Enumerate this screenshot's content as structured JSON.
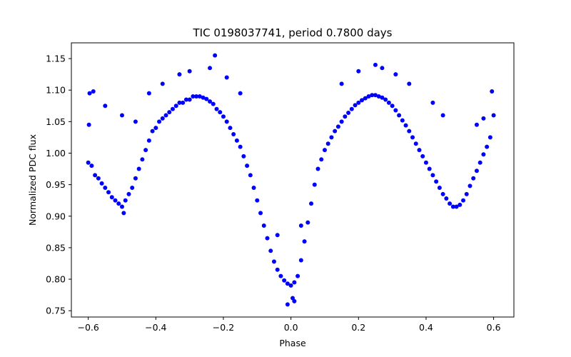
{
  "chart_data": {
    "type": "scatter",
    "title": "TIC 0198037741, period 0.7800 days",
    "xlabel": "Phase",
    "ylabel": "Normalized PDC flux",
    "xlim": [
      -0.65,
      0.66
    ],
    "ylim": [
      0.74,
      1.175
    ],
    "x_ticks": [
      -0.6,
      -0.4,
      -0.2,
      0.0,
      0.2,
      0.4,
      0.6
    ],
    "x_tick_labels": [
      "−0.6",
      "−0.4",
      "−0.2",
      "0.0",
      "0.2",
      "0.4",
      "0.6"
    ],
    "y_ticks": [
      0.75,
      0.8,
      0.85,
      0.9,
      0.95,
      1.0,
      1.05,
      1.1,
      1.15
    ],
    "y_tick_labels": [
      "0.75",
      "0.80",
      "0.85",
      "0.90",
      "0.95",
      "1.00",
      "1.05",
      "1.10",
      "1.15"
    ],
    "grid": false,
    "marker_color": "#0000ff",
    "series": [
      {
        "values_note_free": true,
        "points": [
          [
            -0.6,
            0.985
          ],
          [
            -0.598,
            1.045
          ],
          [
            -0.596,
            1.095
          ],
          [
            -0.59,
            0.98
          ],
          [
            -0.585,
            1.098
          ],
          [
            -0.58,
            0.965
          ],
          [
            -0.57,
            0.96
          ],
          [
            -0.56,
            0.952
          ],
          [
            -0.55,
            0.945
          ],
          [
            -0.54,
            0.938
          ],
          [
            -0.53,
            0.93
          ],
          [
            -0.52,
            0.925
          ],
          [
            -0.51,
            0.92
          ],
          [
            -0.5,
            0.915
          ],
          [
            -0.495,
            0.905
          ],
          [
            -0.49,
            0.925
          ],
          [
            -0.48,
            0.935
          ],
          [
            -0.47,
            0.945
          ],
          [
            -0.46,
            0.96
          ],
          [
            -0.45,
            0.975
          ],
          [
            -0.44,
            0.99
          ],
          [
            -0.43,
            1.005
          ],
          [
            -0.42,
            1.02
          ],
          [
            -0.41,
            1.035
          ],
          [
            -0.4,
            1.04
          ],
          [
            -0.39,
            1.05
          ],
          [
            -0.38,
            1.055
          ],
          [
            -0.37,
            1.06
          ],
          [
            -0.36,
            1.065
          ],
          [
            -0.35,
            1.07
          ],
          [
            -0.34,
            1.075
          ],
          [
            -0.33,
            1.08
          ],
          [
            -0.32,
            1.08
          ],
          [
            -0.31,
            1.085
          ],
          [
            -0.3,
            1.085
          ],
          [
            -0.29,
            1.09
          ],
          [
            -0.28,
            1.09
          ],
          [
            -0.27,
            1.09
          ],
          [
            -0.26,
            1.088
          ],
          [
            -0.25,
            1.086
          ],
          [
            -0.24,
            1.082
          ],
          [
            -0.23,
            1.078
          ],
          [
            -0.22,
            1.07
          ],
          [
            -0.21,
            1.065
          ],
          [
            -0.2,
            1.058
          ],
          [
            -0.19,
            1.05
          ],
          [
            -0.18,
            1.04
          ],
          [
            -0.17,
            1.03
          ],
          [
            -0.16,
            1.02
          ],
          [
            -0.15,
            1.01
          ],
          [
            -0.14,
            0.995
          ],
          [
            -0.13,
            0.98
          ],
          [
            -0.12,
            0.965
          ],
          [
            -0.11,
            0.945
          ],
          [
            -0.1,
            0.925
          ],
          [
            -0.09,
            0.905
          ],
          [
            -0.08,
            0.885
          ],
          [
            -0.07,
            0.865
          ],
          [
            -0.06,
            0.845
          ],
          [
            -0.05,
            0.828
          ],
          [
            -0.04,
            0.815
          ],
          [
            -0.03,
            0.805
          ],
          [
            -0.02,
            0.798
          ],
          [
            -0.01,
            0.793
          ],
          [
            0.0,
            0.79
          ],
          [
            0.005,
            0.77
          ],
          [
            0.01,
            0.795
          ],
          [
            0.02,
            0.805
          ],
          [
            0.03,
            0.83
          ],
          [
            0.04,
            0.86
          ],
          [
            0.05,
            0.89
          ],
          [
            0.06,
            0.92
          ],
          [
            0.07,
            0.95
          ],
          [
            0.08,
            0.975
          ],
          [
            0.09,
            0.99
          ],
          [
            0.1,
            1.005
          ],
          [
            0.11,
            1.015
          ],
          [
            0.12,
            1.025
          ],
          [
            0.13,
            1.035
          ],
          [
            0.14,
            1.042
          ],
          [
            0.15,
            1.05
          ],
          [
            0.16,
            1.058
          ],
          [
            0.17,
            1.064
          ],
          [
            0.18,
            1.07
          ],
          [
            0.19,
            1.076
          ],
          [
            0.2,
            1.08
          ],
          [
            0.21,
            1.084
          ],
          [
            0.22,
            1.087
          ],
          [
            0.23,
            1.09
          ],
          [
            0.24,
            1.092
          ],
          [
            0.25,
            1.092
          ],
          [
            0.26,
            1.09
          ],
          [
            0.27,
            1.088
          ],
          [
            0.28,
            1.085
          ],
          [
            0.29,
            1.08
          ],
          [
            0.3,
            1.075
          ],
          [
            0.31,
            1.068
          ],
          [
            0.32,
            1.06
          ],
          [
            0.33,
            1.052
          ],
          [
            0.34,
            1.044
          ],
          [
            0.35,
            1.035
          ],
          [
            0.36,
            1.025
          ],
          [
            0.37,
            1.015
          ],
          [
            0.38,
            1.005
          ],
          [
            0.39,
            0.995
          ],
          [
            0.4,
            0.985
          ],
          [
            0.41,
            0.975
          ],
          [
            0.42,
            0.965
          ],
          [
            0.43,
            0.955
          ],
          [
            0.44,
            0.945
          ],
          [
            0.45,
            0.935
          ],
          [
            0.46,
            0.928
          ],
          [
            0.47,
            0.92
          ],
          [
            0.48,
            0.915
          ],
          [
            0.49,
            0.915
          ],
          [
            0.5,
            0.918
          ],
          [
            0.51,
            0.925
          ],
          [
            0.52,
            0.935
          ],
          [
            0.53,
            0.948
          ],
          [
            0.54,
            0.96
          ],
          [
            0.55,
            0.972
          ],
          [
            0.56,
            0.985
          ],
          [
            0.57,
            0.998
          ],
          [
            0.58,
            1.01
          ],
          [
            0.59,
            1.025
          ],
          [
            0.595,
            1.098
          ],
          [
            0.6,
            1.06
          ],
          [
            -0.24,
            1.135
          ],
          [
            -0.225,
            1.155
          ],
          [
            -0.3,
            1.13
          ],
          [
            -0.33,
            1.125
          ],
          [
            -0.19,
            1.12
          ],
          [
            -0.15,
            1.095
          ],
          [
            -0.38,
            1.11
          ],
          [
            -0.42,
            1.095
          ],
          [
            0.25,
            1.14
          ],
          [
            0.27,
            1.135
          ],
          [
            0.2,
            1.13
          ],
          [
            0.31,
            1.125
          ],
          [
            0.15,
            1.11
          ],
          [
            0.35,
            1.11
          ],
          [
            0.42,
            1.08
          ],
          [
            0.45,
            1.06
          ],
          [
            -0.46,
            1.05
          ],
          [
            -0.5,
            1.06
          ],
          [
            -0.55,
            1.075
          ],
          [
            0.55,
            1.045
          ],
          [
            0.57,
            1.055
          ],
          [
            -0.04,
            0.87
          ],
          [
            0.03,
            0.885
          ],
          [
            -0.01,
            0.76
          ],
          [
            0.01,
            0.765
          ]
        ]
      }
    ]
  }
}
